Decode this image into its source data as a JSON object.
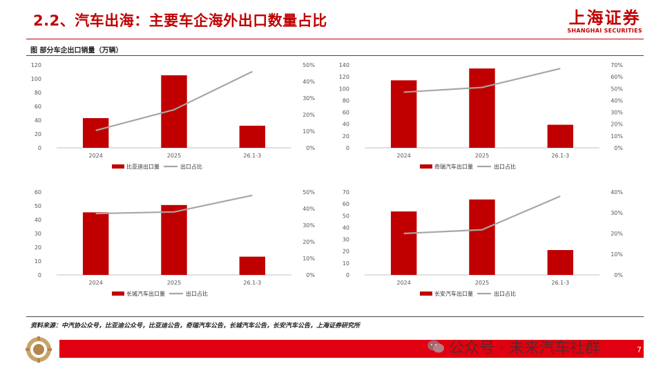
{
  "header": {
    "title": "2.2、汽车出海：主要车企海外出口数量占比",
    "logo_cn": "上海证券",
    "logo_en": "SHANGHAI SECURITIES"
  },
  "figure_caption": "图  部分车企出口销量（万辆）",
  "source": "资料来源：中汽协公众号，比亚迪公众号，比亚迪公告，奇瑞汽车公告，长城汽车公告，长安汽车公告，上海证券研究所",
  "watermark": "公众号 · 未来汽车社群",
  "page_number": "7",
  "colors": {
    "bar": "#c00000",
    "line": "#a6a6a6",
    "accent": "#c00000",
    "footer": "#e10010"
  },
  "chart_data": [
    {
      "type": "bar+line",
      "categories": [
        "2024",
        "2025",
        "26.1-3"
      ],
      "series": [
        {
          "name": "比亚迪出口量",
          "type": "bar",
          "axis": "left",
          "values": [
            43,
            105,
            32
          ]
        },
        {
          "name": "出口占比",
          "type": "line",
          "axis": "right",
          "values": [
            10.5,
            23.0,
            46.0
          ]
        }
      ],
      "ylim": [
        0,
        120
      ],
      "yticks": [
        0,
        20,
        40,
        60,
        80,
        100,
        120
      ],
      "y2lim": [
        0,
        50
      ],
      "y2ticks": [
        "0%",
        "10%",
        "20%",
        "30%",
        "40%",
        "50%"
      ],
      "legend": "bottom"
    },
    {
      "type": "bar+line",
      "categories": [
        "2024",
        "2025",
        "26.1-3"
      ],
      "series": [
        {
          "name": "奇瑞汽车出口量",
          "type": "bar",
          "axis": "left",
          "values": [
            114,
            134,
            39
          ]
        },
        {
          "name": "出口占比",
          "type": "line",
          "axis": "right",
          "values": [
            47.0,
            51.0,
            67.0
          ]
        }
      ],
      "ylim": [
        0,
        140
      ],
      "yticks": [
        0,
        20,
        40,
        60,
        80,
        100,
        120,
        140
      ],
      "y2lim": [
        0,
        70
      ],
      "y2ticks": [
        "0%",
        "10%",
        "20%",
        "30%",
        "40%",
        "50%",
        "60%",
        "70%"
      ],
      "legend": "bottom"
    },
    {
      "type": "bar+line",
      "categories": [
        "2024",
        "2025",
        "26.1-3"
      ],
      "series": [
        {
          "name": "长城汽车出口量",
          "type": "bar",
          "axis": "left",
          "values": [
            45.3,
            50.6,
            13.2
          ]
        },
        {
          "name": "出口占比",
          "type": "line",
          "axis": "right",
          "values": [
            37.0,
            38.0,
            48.0
          ]
        }
      ],
      "ylim": [
        0,
        60
      ],
      "yticks": [
        0,
        10,
        20,
        30,
        40,
        50,
        60
      ],
      "y2lim": [
        0,
        50
      ],
      "y2ticks": [
        "0%",
        "10%",
        "20%",
        "30%",
        "40%",
        "50%"
      ],
      "legend": "bottom"
    },
    {
      "type": "bar+line",
      "categories": [
        "2024",
        "2025",
        "26.1-3"
      ],
      "series": [
        {
          "name": "长安汽车出口量",
          "type": "bar",
          "axis": "left",
          "values": [
            53.6,
            63.7,
            21.0
          ]
        },
        {
          "name": "出口占比",
          "type": "line",
          "axis": "right",
          "values": [
            20.0,
            21.8,
            38.0
          ]
        }
      ],
      "ylim": [
        0,
        70
      ],
      "yticks": [
        0,
        10,
        20,
        30,
        40,
        50,
        60,
        70
      ],
      "y2lim": [
        0,
        40
      ],
      "y2ticks": [
        "0%",
        "10%",
        "20%",
        "30%",
        "40%"
      ],
      "legend": "bottom"
    }
  ]
}
